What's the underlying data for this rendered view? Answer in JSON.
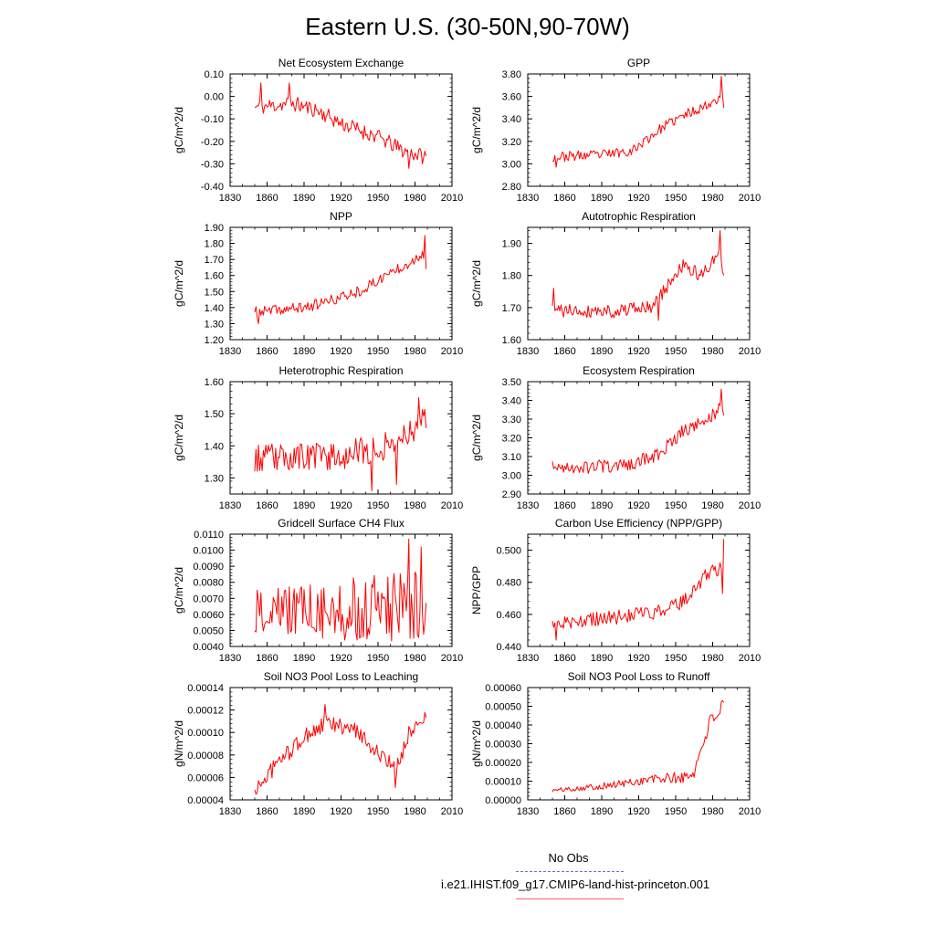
{
  "page": {
    "title": "Eastern U.S. (30-50N,90-70W)"
  },
  "legend": {
    "obs_label": "No Obs",
    "obs_color": "#6a6af0",
    "run_label": "i.e21.IHIST.f09_g17.CMIP6-land-hist-princeton.001",
    "run_color": "#ff0000"
  },
  "chart_data": [
    {
      "type": "line",
      "title": "Net Ecosystem Exchange",
      "ylabel": "gC/m^2/d",
      "xlabel": "",
      "xlim": [
        1830,
        2010
      ],
      "xticks": [
        1830,
        1860,
        1890,
        1920,
        1950,
        1980,
        2010
      ],
      "ylim": [
        -0.4,
        0.1
      ],
      "yticks": [
        -0.4,
        -0.3,
        -0.2,
        -0.1,
        0.0,
        0.1
      ],
      "ytick_labels": [
        "-0.40",
        "-0.30",
        "-0.20",
        "-0.10",
        "0.00",
        "0.10"
      ],
      "series": [
        {
          "color": "#ff0000",
          "x_start": 1850,
          "x_end": 1989,
          "anchors": [
            [
              1850,
              -0.05
            ],
            [
              1880,
              -0.03
            ],
            [
              1900,
              -0.06
            ],
            [
              1920,
              -0.12
            ],
            [
              1950,
              -0.18
            ],
            [
              1970,
              -0.24
            ],
            [
              1989,
              -0.27
            ]
          ],
          "noise": 0.035,
          "noise_trend": 0.0,
          "seed": 11,
          "extremes": [
            [
              1855,
              0.06
            ],
            [
              1878,
              0.06
            ],
            [
              1975,
              -0.32
            ]
          ]
        }
      ]
    },
    {
      "type": "line",
      "title": "GPP",
      "ylabel": "gC/m^2/d",
      "xlabel": "",
      "xlim": [
        1830,
        2010
      ],
      "xticks": [
        1830,
        1860,
        1890,
        1920,
        1950,
        1980,
        2010
      ],
      "ylim": [
        2.8,
        3.8
      ],
      "yticks": [
        2.8,
        3.0,
        3.2,
        3.4,
        3.6,
        3.8
      ],
      "ytick_labels": [
        "2.80",
        "3.00",
        "3.20",
        "3.40",
        "3.60",
        "3.80"
      ],
      "series": [
        {
          "color": "#ff0000",
          "x_start": 1850,
          "x_end": 1989,
          "anchors": [
            [
              1850,
              3.06
            ],
            [
              1890,
              3.08
            ],
            [
              1915,
              3.12
            ],
            [
              1940,
              3.33
            ],
            [
              1960,
              3.45
            ],
            [
              1975,
              3.52
            ],
            [
              1989,
              3.62
            ]
          ],
          "noise": 0.045,
          "noise_trend": 0.0,
          "seed": 23,
          "extremes": [
            [
              1853,
              2.97
            ],
            [
              1987,
              3.78
            ],
            [
              1989,
              3.5
            ]
          ]
        }
      ]
    },
    {
      "type": "line",
      "title": "NPP",
      "ylabel": "gC/m^2/d",
      "xlabel": "",
      "xlim": [
        1830,
        2010
      ],
      "xticks": [
        1830,
        1860,
        1890,
        1920,
        1950,
        1980,
        2010
      ],
      "ylim": [
        1.2,
        1.9
      ],
      "yticks": [
        1.2,
        1.3,
        1.4,
        1.5,
        1.6,
        1.7,
        1.8,
        1.9
      ],
      "ytick_labels": [
        "1.20",
        "1.30",
        "1.40",
        "1.50",
        "1.60",
        "1.70",
        "1.80",
        "1.90"
      ],
      "series": [
        {
          "color": "#ff0000",
          "x_start": 1850,
          "x_end": 1989,
          "anchors": [
            [
              1850,
              1.37
            ],
            [
              1890,
              1.4
            ],
            [
              1915,
              1.45
            ],
            [
              1940,
              1.52
            ],
            [
              1960,
              1.62
            ],
            [
              1975,
              1.68
            ],
            [
              1989,
              1.75
            ]
          ],
          "noise": 0.035,
          "noise_trend": 0.0,
          "seed": 37,
          "extremes": [
            [
              1853,
              1.3
            ],
            [
              1988,
              1.85
            ],
            [
              1989,
              1.64
            ]
          ]
        }
      ]
    },
    {
      "type": "line",
      "title": "Autotrophic Respiration",
      "ylabel": "gC/m^2/d",
      "xlabel": "",
      "xlim": [
        1830,
        2010
      ],
      "xticks": [
        1830,
        1860,
        1890,
        1920,
        1950,
        1980,
        2010
      ],
      "ylim": [
        1.6,
        1.95
      ],
      "yticks": [
        1.6,
        1.7,
        1.8,
        1.9
      ],
      "ytick_labels": [
        "1.60",
        "1.70",
        "1.80",
        "1.90"
      ],
      "series": [
        {
          "color": "#ff0000",
          "x_start": 1850,
          "x_end": 1989,
          "anchors": [
            [
              1850,
              1.69
            ],
            [
              1900,
              1.69
            ],
            [
              1930,
              1.7
            ],
            [
              1942,
              1.76
            ],
            [
              1955,
              1.83
            ],
            [
              1970,
              1.8
            ],
            [
              1985,
              1.86
            ],
            [
              1989,
              1.82
            ]
          ],
          "noise": 0.022,
          "noise_trend": 0.0,
          "seed": 41,
          "extremes": [
            [
              1851,
              1.76
            ],
            [
              1936,
              1.66
            ],
            [
              1986,
              1.94
            ],
            [
              1989,
              1.8
            ]
          ]
        }
      ]
    },
    {
      "type": "line",
      "title": "Heterotrophic Respiration",
      "ylabel": "gC/m^2/d",
      "xlabel": "",
      "xlim": [
        1830,
        2010
      ],
      "xticks": [
        1830,
        1860,
        1890,
        1920,
        1950,
        1980,
        2010
      ],
      "ylim": [
        1.25,
        1.6
      ],
      "yticks": [
        1.3,
        1.4,
        1.5,
        1.6
      ],
      "ytick_labels": [
        "1.30",
        "1.40",
        "1.50",
        "1.60"
      ],
      "series": [
        {
          "color": "#ff0000",
          "x_start": 1850,
          "x_end": 1989,
          "anchors": [
            [
              1850,
              1.36
            ],
            [
              1920,
              1.37
            ],
            [
              1950,
              1.39
            ],
            [
              1970,
              1.43
            ],
            [
              1989,
              1.49
            ]
          ],
          "noise": 0.045,
          "noise_trend": 0.0,
          "seed": 53,
          "extremes": [
            [
              1945,
              1.26
            ],
            [
              1983,
              1.55
            ],
            [
              1965,
              1.28
            ]
          ]
        }
      ]
    },
    {
      "type": "line",
      "title": "Ecosystem Respiration",
      "ylabel": "gC/m^2/d",
      "xlabel": "",
      "xlim": [
        1830,
        2010
      ],
      "xticks": [
        1830,
        1860,
        1890,
        1920,
        1950,
        1980,
        2010
      ],
      "ylim": [
        2.9,
        3.5
      ],
      "yticks": [
        2.9,
        3.0,
        3.1,
        3.2,
        3.3,
        3.4,
        3.5
      ],
      "ytick_labels": [
        "2.90",
        "3.00",
        "3.10",
        "3.20",
        "3.30",
        "3.40",
        "3.50"
      ],
      "series": [
        {
          "color": "#ff0000",
          "x_start": 1850,
          "x_end": 1989,
          "anchors": [
            [
              1850,
              3.04
            ],
            [
              1910,
              3.05
            ],
            [
              1935,
              3.11
            ],
            [
              1955,
              3.23
            ],
            [
              1975,
              3.3
            ],
            [
              1989,
              3.37
            ]
          ],
          "noise": 0.035,
          "noise_trend": 0.0,
          "seed": 67,
          "extremes": [
            [
              1987,
              3.46
            ],
            [
              1989,
              3.32
            ]
          ]
        }
      ]
    },
    {
      "type": "line",
      "title": "Gridcell Surface CH4 Flux",
      "ylabel": "gC/m^2/d",
      "xlabel": "",
      "xlim": [
        1830,
        2010
      ],
      "xticks": [
        1830,
        1860,
        1890,
        1920,
        1950,
        1980,
        2010
      ],
      "ylim": [
        0.004,
        0.011
      ],
      "yticks": [
        0.004,
        0.005,
        0.006,
        0.007,
        0.008,
        0.009,
        0.01,
        0.011
      ],
      "ytick_labels": [
        "0.0040",
        "0.0050",
        "0.0060",
        "0.0070",
        "0.0080",
        "0.0090",
        "0.0100",
        "0.0110"
      ],
      "series": [
        {
          "color": "#ff0000",
          "x_start": 1850,
          "x_end": 1989,
          "anchors": [
            [
              1850,
              0.0062
            ],
            [
              1940,
              0.0063
            ],
            [
              1965,
              0.0064
            ],
            [
              1989,
              0.0072
            ]
          ],
          "noise": 0.0013,
          "noise_trend": 0.0012,
          "seed": 79,
          "extremes": [
            [
              1851,
              0.0049
            ],
            [
              1975,
              0.0107
            ],
            [
              1985,
              0.0102
            ],
            [
              1988,
              0.0055
            ]
          ]
        }
      ]
    },
    {
      "type": "line",
      "title": "Carbon Use Efficiency (NPP/GPP)",
      "ylabel": "NPP/GPP",
      "xlabel": "",
      "xlim": [
        1830,
        2010
      ],
      "xticks": [
        1830,
        1860,
        1890,
        1920,
        1950,
        1980,
        2010
      ],
      "ylim": [
        0.44,
        0.51
      ],
      "yticks": [
        0.44,
        0.46,
        0.48,
        0.5
      ],
      "ytick_labels": [
        "0.440",
        "0.460",
        "0.480",
        "0.500"
      ],
      "series": [
        {
          "color": "#ff0000",
          "x_start": 1850,
          "x_end": 1989,
          "anchors": [
            [
              1850,
              0.454
            ],
            [
              1900,
              0.458
            ],
            [
              1940,
              0.462
            ],
            [
              1960,
              0.47
            ],
            [
              1975,
              0.485
            ],
            [
              1989,
              0.49
            ]
          ],
          "noise": 0.0045,
          "noise_trend": 0.0,
          "seed": 83,
          "extremes": [
            [
              1853,
              0.444
            ],
            [
              1989,
              0.507
            ],
            [
              1988,
              0.473
            ]
          ]
        }
      ]
    },
    {
      "type": "line",
      "title": "Soil NO3 Pool Loss to Leaching",
      "ylabel": "gN/m^2/d",
      "xlabel": "",
      "xlim": [
        1830,
        2010
      ],
      "xticks": [
        1830,
        1860,
        1890,
        1920,
        1950,
        1980,
        2010
      ],
      "ylim": [
        4e-05,
        0.00014
      ],
      "yticks": [
        4e-05,
        6e-05,
        8e-05,
        0.0001,
        0.00012,
        0.00014
      ],
      "ytick_labels": [
        "0.00004",
        "0.00006",
        "0.00008",
        "0.00010",
        "0.00012",
        "0.00014"
      ],
      "series": [
        {
          "color": "#ff0000",
          "x_start": 1850,
          "x_end": 1989,
          "anchors": [
            [
              1850,
              4.8e-05
            ],
            [
              1870,
              7.5e-05
            ],
            [
              1895,
              0.0001
            ],
            [
              1910,
              0.000108
            ],
            [
              1935,
              0.0001
            ],
            [
              1955,
              7.5e-05
            ],
            [
              1965,
              6.8e-05
            ],
            [
              1975,
              0.0001
            ],
            [
              1989,
              0.000115
            ]
          ],
          "noise": 7.5e-06,
          "noise_trend": 0.0,
          "seed": 97,
          "extremes": [
            [
              1851,
              4.5e-05
            ],
            [
              1907,
              0.000125
            ],
            [
              1964,
              5.1e-05
            ]
          ]
        }
      ]
    },
    {
      "type": "line",
      "title": "Soil NO3 Pool Loss to Runoff",
      "ylabel": "gN/m^2/d",
      "xlabel": "",
      "xlim": [
        1830,
        2010
      ],
      "xticks": [
        1830,
        1860,
        1890,
        1920,
        1950,
        1980,
        2010
      ],
      "ylim": [
        0.0,
        0.0006
      ],
      "yticks": [
        0.0,
        0.0001,
        0.0002,
        0.0003,
        0.0004,
        0.0005,
        0.0006
      ],
      "ytick_labels": [
        "0.00000",
        "0.00010",
        "0.00020",
        "0.00030",
        "0.00040",
        "0.00050",
        "0.00060"
      ],
      "series": [
        {
          "color": "#ff0000",
          "x_start": 1850,
          "x_end": 1989,
          "anchors": [
            [
              1850,
              5e-05
            ],
            [
              1900,
              8e-05
            ],
            [
              1930,
              0.00011
            ],
            [
              1960,
              0.00012
            ],
            [
              1965,
              0.00015
            ],
            [
              1972,
              0.0003
            ],
            [
              1978,
              0.00042
            ],
            [
              1989,
              0.0005
            ]
          ],
          "noise": 1e-05,
          "noise_trend": 3e-05,
          "seed": 101,
          "extremes": [
            [
              1989,
              0.00052
            ]
          ]
        }
      ]
    }
  ]
}
